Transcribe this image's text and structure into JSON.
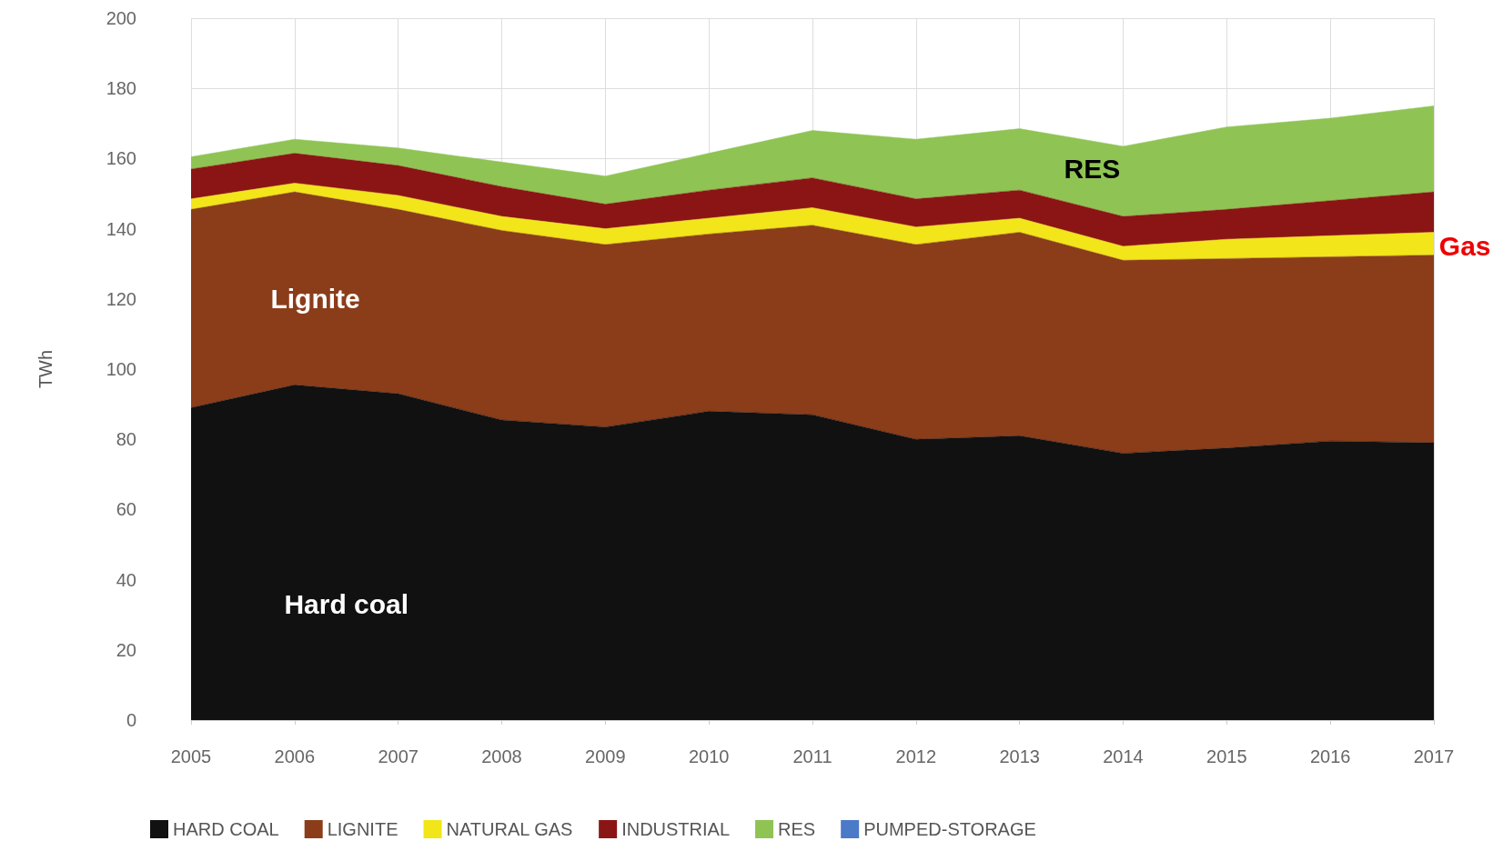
{
  "chart_data": {
    "type": "area",
    "stacked": true,
    "ylabel": "TWh",
    "categories": [
      "2005",
      "2006",
      "2007",
      "2008",
      "2009",
      "2010",
      "2011",
      "2012",
      "2013",
      "2014",
      "2015",
      "2016",
      "2017"
    ],
    "ylim": [
      0,
      200
    ],
    "yticks": [
      0,
      20,
      40,
      60,
      80,
      100,
      120,
      140,
      160,
      180,
      200
    ],
    "grid": true,
    "legend": "bottom left",
    "marker": "none",
    "series": [
      {
        "name": "HARD COAL",
        "color": "#111111",
        "values": [
          89,
          95.5,
          93,
          85.5,
          83.5,
          88,
          87,
          80,
          81,
          76,
          77.5,
          79.5,
          79
        ]
      },
      {
        "name": "LIGNITE",
        "color": "#8b3d1a",
        "values": [
          56.5,
          55,
          52.5,
          54,
          52,
          50.5,
          54,
          55.5,
          58,
          55,
          54,
          52.5,
          53.5
        ]
      },
      {
        "name": "NATURAL GAS",
        "color": "#f2e51a",
        "values": [
          3,
          2.5,
          4,
          4,
          4.5,
          4.5,
          5,
          5,
          4,
          4,
          5.5,
          6,
          6.5
        ]
      },
      {
        "name": "INDUSTRIAL",
        "color": "#8b1515",
        "values": [
          8.5,
          8.5,
          8.5,
          8.5,
          7,
          8,
          8.5,
          8,
          8,
          8.5,
          8.5,
          10,
          11.5
        ]
      },
      {
        "name": "RES",
        "color": "#8fc454",
        "values": [
          3.5,
          4,
          5,
          7,
          8,
          10.5,
          13.5,
          17,
          17.5,
          20,
          23.5,
          23.5,
          24.5
        ]
      },
      {
        "name": "PUMPED-STORAGE",
        "color": "#4a7ac8",
        "values": [
          null,
          null,
          null,
          null,
          null,
          null,
          null,
          null,
          null,
          null,
          null,
          null,
          null
        ]
      }
    ],
    "annotations": [
      "Lignite",
      "Hard coal",
      "RES",
      "Gas"
    ]
  }
}
